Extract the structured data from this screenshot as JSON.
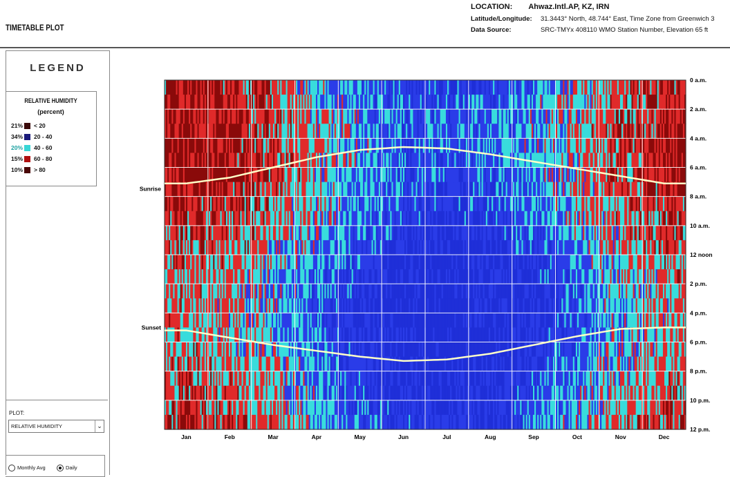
{
  "window": {
    "title": "TIMETABLE PLOT"
  },
  "location": {
    "label": "LOCATION:",
    "value": "Ahwaz.Intl.AP, KZ, IRN",
    "latlon_label": "Latitude/Longitude:",
    "latlon_value": "31.3443° North, 48.744° East, Time Zone from Greenwich 3",
    "source_label": "Data Source:",
    "source_value": "SRC-TMYx    408110 WMO Station Number, Elevation 65 ft"
  },
  "legend": {
    "title": "LEGEND",
    "heading": "RELATIVE HUMIDITY",
    "subheading": "(percent)",
    "items": [
      {
        "pct": "21%",
        "range": "< 20",
        "color": "#3b0a0a",
        "pct_color": "#111"
      },
      {
        "pct": "34%",
        "range": "20  -  40",
        "color": "#1a1a7a",
        "pct_color": "#111"
      },
      {
        "pct": "20%",
        "range": "40  -  60",
        "color": "#38d6d6",
        "pct_color": "#1aa0a0"
      },
      {
        "pct": "15%",
        "range": "60  -  80",
        "color": "#b01010",
        "pct_color": "#111"
      },
      {
        "pct": "10%",
        "range": "> 80",
        "color": "#4a0808",
        "pct_color": "#111"
      }
    ]
  },
  "controls": {
    "plot_label": "PLOT:",
    "plot_value": "RELATIVE HUMIDITY",
    "radio_monthly": "Monthly Avg",
    "radio_daily": "Daily",
    "selected": "daily"
  },
  "chart_data": {
    "type": "heatmap",
    "title": "",
    "x_categories": [
      "Jan",
      "Feb",
      "Mar",
      "Apr",
      "May",
      "Jun",
      "Jul",
      "Aug",
      "Sep",
      "Oct",
      "Nov",
      "Dec"
    ],
    "y_labels": [
      "0 a.m.",
      "2 a.m.",
      "4 a.m.",
      "6 a.m.",
      "8 a.m.",
      "10 a.m.",
      "12 noon",
      "2 p.m.",
      "4 p.m.",
      "6 p.m.",
      "8 p.m.",
      "10 p.m.",
      "12 p.m."
    ],
    "ylim": [
      0,
      24
    ],
    "annotations": {
      "sunrise": "Sunrise",
      "sunset": "Sunset"
    },
    "sunrise_hours": [
      7.1,
      6.7,
      6.0,
      5.3,
      4.8,
      4.6,
      4.7,
      5.1,
      5.6,
      6.1,
      6.6,
      7.1
    ],
    "sunset_hours": [
      17.2,
      17.7,
      18.2,
      18.6,
      19.0,
      19.3,
      19.2,
      18.8,
      18.2,
      17.6,
      17.1,
      17.0
    ],
    "color_scale": [
      {
        "range": "< 20",
        "color": "#1f2fd8"
      },
      {
        "range": "20 - 40",
        "color": "#2a3ce8"
      },
      {
        "range": "40 - 60",
        "color": "#39dcdc"
      },
      {
        "range": "60 - 80",
        "color": "#e02a2a"
      },
      {
        "range": "> 80",
        "color": "#8a0a0a"
      }
    ],
    "grid": true
  }
}
